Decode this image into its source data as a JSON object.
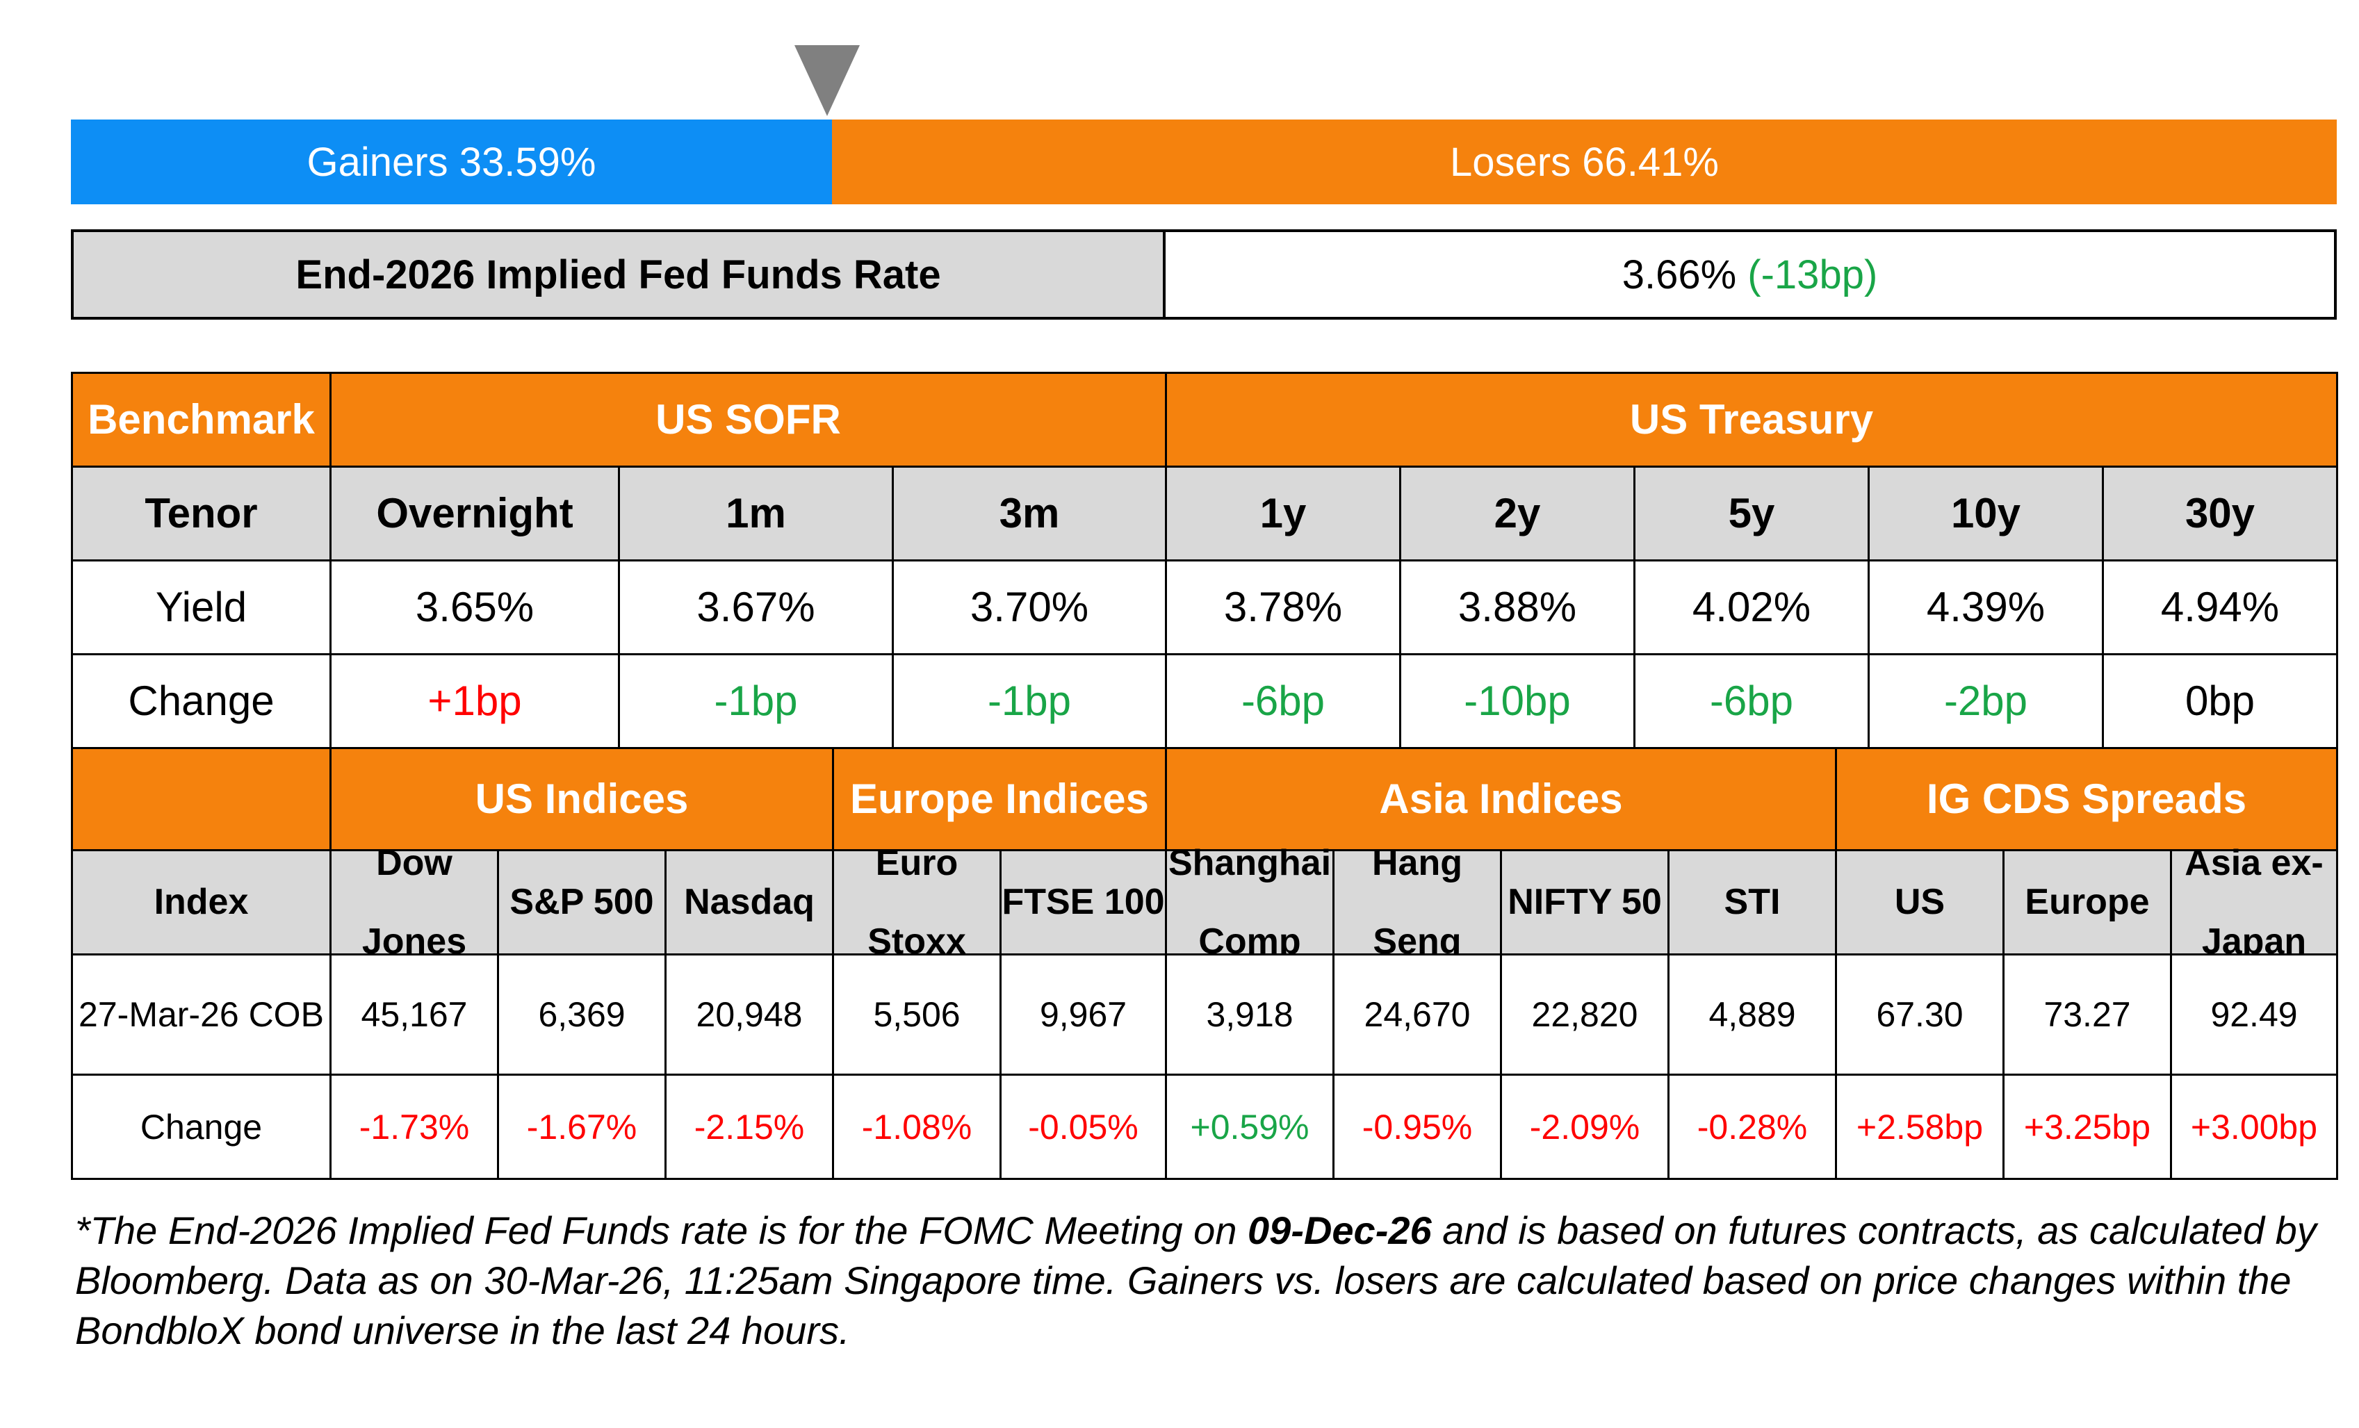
{
  "market_bar": {
    "gainers_label": "Gainers 33.59%",
    "losers_label": "Losers 66.41%",
    "gainers_fraction": 0.3359
  },
  "fed_funds": {
    "label": "End-2026 Implied Fed Funds Rate",
    "value": "3.66%",
    "change": "(-13bp)",
    "change_color": "#19a547"
  },
  "rates_table": {
    "header": {
      "benchmark": "Benchmark",
      "sofr": "US SOFR",
      "treasury": "US Treasury"
    },
    "tenor_label": "Tenor",
    "yield_label": "Yield",
    "change_label": "Change",
    "tenors": [
      "Overnight",
      "1m",
      "3m",
      "1y",
      "2y",
      "5y",
      "10y",
      "30y"
    ],
    "yields": [
      "3.65%",
      "3.67%",
      "3.70%",
      "3.78%",
      "3.88%",
      "4.02%",
      "4.39%",
      "4.94%"
    ],
    "changes": [
      "+1bp",
      "-1bp",
      "-1bp",
      "-6bp",
      "-10bp",
      "-6bp",
      "-2bp",
      "0bp"
    ],
    "change_dirs": [
      "up",
      "down",
      "down",
      "down",
      "down",
      "down",
      "down",
      "flat"
    ]
  },
  "indices_table": {
    "groups": [
      "US Indices",
      "Europe Indices",
      "Asia Indices",
      "IG CDS Spreads"
    ],
    "index_label": "Index",
    "cob_label": "27-Mar-26 COB",
    "change_label": "Change",
    "names": [
      [
        "Dow",
        "Jones"
      ],
      [
        "S&P 500"
      ],
      [
        "Nasdaq"
      ],
      [
        "Euro",
        "Stoxx"
      ],
      [
        "FTSE 100"
      ],
      [
        "Shanghai",
        "Comp"
      ],
      [
        "Hang",
        "Seng"
      ],
      [
        "NIFTY 50"
      ],
      [
        "STI"
      ],
      [
        "US"
      ],
      [
        "Europe"
      ],
      [
        "Asia ex-",
        "Japan"
      ]
    ],
    "values": [
      "45,167",
      "6,369",
      "20,948",
      "5,506",
      "9,967",
      "3,918",
      "24,670",
      "22,820",
      "4,889",
      "67.30",
      "73.27",
      "92.49"
    ],
    "changes": [
      "-1.73%",
      "-1.67%",
      "-2.15%",
      "-1.08%",
      "-0.05%",
      "+0.59%",
      "-0.95%",
      "-2.09%",
      "-0.28%",
      "+2.58bp",
      "+3.25bp",
      "+3.00bp"
    ],
    "change_colors": [
      "red",
      "red",
      "red",
      "red",
      "red",
      "green",
      "red",
      "red",
      "red",
      "red",
      "red",
      "red"
    ]
  },
  "footnote": {
    "part1": "*The End-2026 Implied Fed Funds rate is for the FOMC Meeting on ",
    "date": "09-Dec-26",
    "part2": " and is based on futures contracts, as calculated by Bloomberg. Data as on 30-Mar-26, 11:25am Singapore time. Gainers vs. losers are calculated based on price changes within the BondbloX bond universe in the last 24 hours."
  },
  "colors": {
    "orange": "#f5820d",
    "blue": "#0d8ef5",
    "grey": "#d9d9d9",
    "pointer": "#808080",
    "red": "#ff0000",
    "green": "#19a547"
  }
}
